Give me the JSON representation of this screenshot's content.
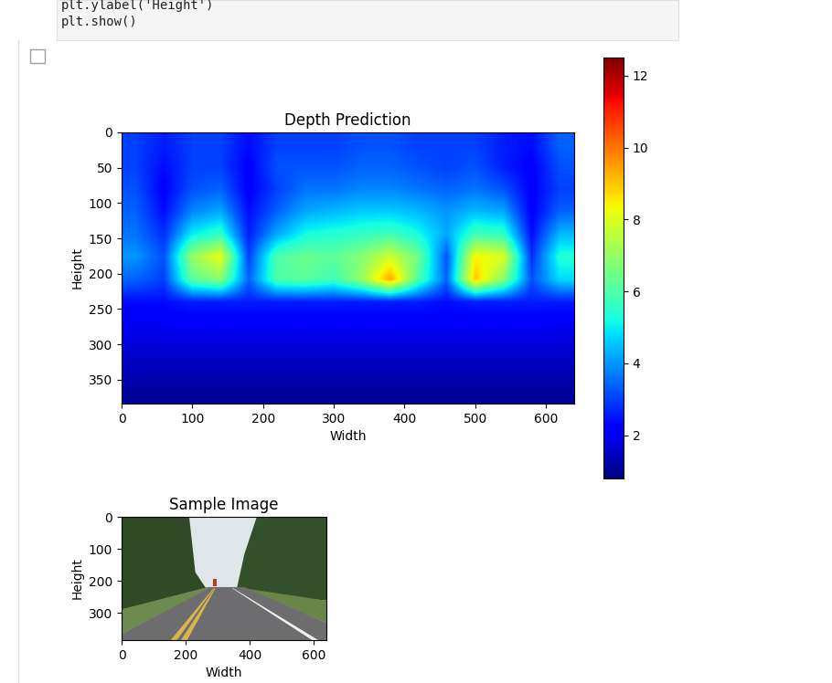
{
  "code": [
    "plt.ylabel('Height')",
    "plt.show()"
  ],
  "chart_data": [
    {
      "type": "heatmap",
      "title": "Depth Prediction",
      "x_label": "Width",
      "y_label": "Height",
      "xlim": [
        0,
        640
      ],
      "ylim": [
        384,
        0
      ],
      "xticks": [
        0,
        100,
        200,
        300,
        400,
        500,
        600
      ],
      "yticks": [
        0,
        50,
        100,
        150,
        200,
        250,
        300,
        350
      ],
      "color": "jet",
      "cells": [
        [
          3.0,
          2.6,
          3.0,
          3.0,
          2.4,
          3.0,
          3.0,
          3.0,
          3.2,
          3.2,
          3.0,
          3.0,
          3.0,
          2.6,
          2.4,
          3.4
        ],
        [
          3.0,
          2.4,
          3.0,
          3.0,
          2.2,
          3.2,
          3.2,
          3.2,
          3.4,
          3.4,
          3.2,
          3.0,
          3.2,
          2.6,
          2.2,
          3.2
        ],
        [
          3.2,
          2.2,
          3.2,
          3.4,
          2.2,
          3.0,
          3.6,
          3.6,
          3.8,
          3.8,
          3.6,
          3.4,
          3.6,
          3.2,
          2.2,
          3.0
        ],
        [
          3.4,
          2.4,
          3.8,
          4.2,
          2.4,
          3.4,
          4.2,
          4.4,
          4.6,
          4.6,
          4.4,
          4.0,
          4.4,
          4.2,
          2.2,
          3.4
        ],
        [
          3.6,
          2.8,
          5.0,
          5.6,
          2.6,
          4.2,
          5.2,
          5.4,
          5.6,
          5.8,
          5.2,
          4.2,
          5.8,
          5.6,
          2.4,
          4.4
        ],
        [
          4.0,
          3.2,
          7.0,
          8.2,
          3.0,
          6.0,
          6.4,
          6.2,
          6.8,
          7.8,
          6.4,
          3.2,
          8.4,
          8.0,
          2.8,
          5.4
        ],
        [
          3.4,
          3.0,
          6.2,
          6.8,
          3.4,
          6.0,
          6.2,
          5.8,
          7.0,
          9.4,
          6.0,
          3.4,
          9.0,
          6.8,
          3.2,
          4.8
        ],
        [
          2.4,
          2.4,
          2.6,
          2.6,
          2.6,
          2.6,
          2.6,
          2.6,
          2.6,
          2.6,
          2.6,
          2.4,
          2.6,
          2.6,
          2.6,
          2.6
        ],
        [
          2.0,
          2.0,
          2.1,
          2.1,
          2.1,
          2.1,
          2.1,
          2.1,
          2.1,
          2.1,
          2.1,
          2.1,
          2.1,
          2.1,
          2.1,
          2.0
        ],
        [
          1.7,
          1.7,
          1.7,
          1.7,
          1.7,
          1.7,
          1.7,
          1.7,
          1.7,
          1.7,
          1.7,
          1.7,
          1.7,
          1.7,
          1.7,
          1.7
        ],
        [
          1.4,
          1.4,
          1.4,
          1.4,
          1.4,
          1.4,
          1.4,
          1.4,
          1.4,
          1.4,
          1.4,
          1.4,
          1.4,
          1.4,
          1.4,
          1.4
        ],
        [
          1.1,
          1.1,
          1.1,
          1.1,
          1.1,
          1.1,
          1.1,
          1.1,
          1.1,
          1.1,
          1.1,
          1.1,
          1.1,
          1.1,
          1.1,
          1.1
        ]
      ],
      "color_range": [
        0.8,
        12.5
      ],
      "color_ticks": [
        2,
        4,
        6,
        8,
        10,
        12
      ]
    },
    {
      "type": "image",
      "title": "Sample Image",
      "x_label": "Width",
      "y_label": "Height",
      "xlim": [
        0,
        640
      ],
      "ylim": [
        384,
        0
      ],
      "xticks": [
        0,
        200,
        400,
        600
      ],
      "yticks": [
        0,
        100,
        200,
        300
      ]
    }
  ]
}
